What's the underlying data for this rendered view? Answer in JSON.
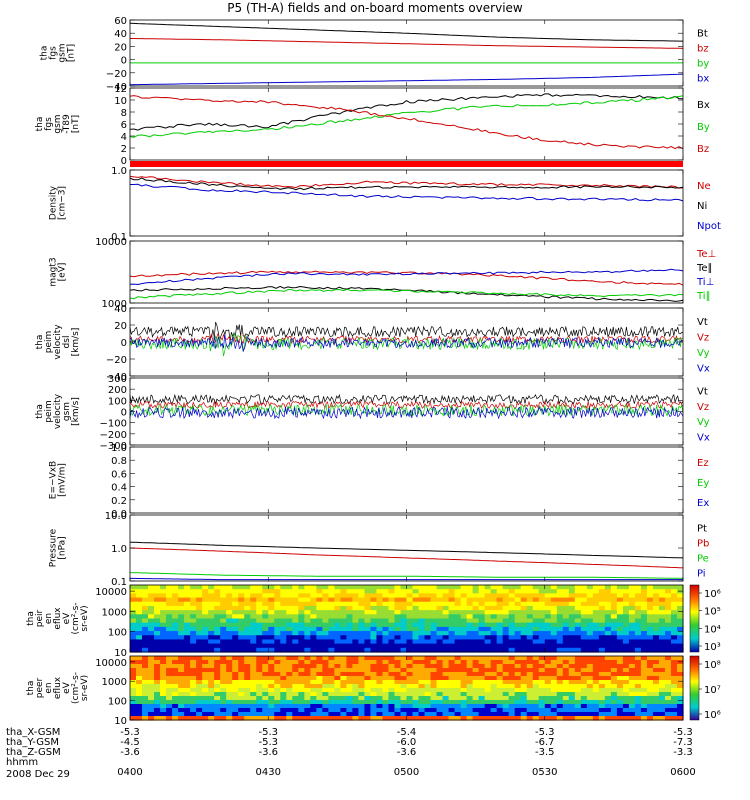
{
  "chart_data": {
    "type": "line",
    "title": "P5 (TH-A) fields and on-board moments overview",
    "date": "2008 Dec 29",
    "x": {
      "tick_labels": [
        "0400",
        "0430",
        "0500",
        "0530",
        "0600"
      ],
      "ephemeris": [
        {
          "label": "tha_X-GSM",
          "values": [
            "-5.3",
            "-5.3",
            "-5.4",
            "-5.3",
            "-5.3"
          ]
        },
        {
          "label": "tha_Y-GSM",
          "values": [
            "-4.5",
            "-5.3",
            "-6.0",
            "-6.7",
            "-7.3"
          ]
        },
        {
          "label": "tha_Z-GSM",
          "values": [
            "-3.6",
            "-3.6",
            "-3.6",
            "-3.5",
            "-3.3"
          ]
        },
        {
          "label": "hhmm",
          "values": []
        }
      ]
    },
    "panels": [
      {
        "ylabel": [
          "tha",
          "fgs",
          "gsm",
          "[nT]"
        ],
        "yticks": [
          "60",
          "40",
          "20",
          "0",
          "−20",
          "−40"
        ],
        "ylim": [
          -40,
          60
        ],
        "ymid": [
          -40,
          -20,
          0,
          20,
          40,
          60
        ],
        "legend": [
          {
            "label": "Bt",
            "color": "#000000"
          },
          {
            "label": "bz",
            "color": "#cc0000"
          },
          {
            "label": "by",
            "color": "#00cc00"
          },
          {
            "label": "bx",
            "color": "#0000cc"
          }
        ],
        "series": [
          {
            "color": "#000000",
            "values": [
              55,
              50,
              45,
              40,
              34,
              30,
              28
            ]
          },
          {
            "color": "#cc0000",
            "values": [
              32,
              30,
              27,
              24,
              21,
              19,
              17
            ]
          },
          {
            "color": "#00cc00",
            "values": [
              -5,
              -5,
              -5,
              -5,
              -5,
              -5,
              -5
            ]
          },
          {
            "color": "#0000cc",
            "values": [
              -38,
              -36,
              -34,
              -32,
              -30,
              -27,
              -22
            ]
          }
        ]
      },
      {
        "ylabel": [
          "tha",
          "fgs",
          "gsm",
          "-T89",
          "[nT]"
        ],
        "yticks": [
          "12",
          "10",
          "8",
          "6",
          "4",
          "2",
          "0"
        ],
        "ylim": [
          -1,
          12
        ],
        "legend": [
          {
            "label": "Bx",
            "color": "#000000"
          },
          {
            "label": "By",
            "color": "#00cc00"
          },
          {
            "label": "Bz",
            "color": "#cc0000"
          }
        ],
        "series": [
          {
            "color": "#000000",
            "values": [
              4.5,
              5.5,
              5.0,
              7.5,
              9.5,
              10.2,
              10.8,
              10.5,
              10.2
            ]
          },
          {
            "color": "#00cc00",
            "values": [
              3.2,
              4.0,
              4.5,
              6.0,
              7.5,
              8.5,
              9.0,
              9.5,
              10.5
            ]
          },
          {
            "color": "#cc0000",
            "values": [
              10.5,
              9.8,
              9.5,
              8.2,
              6.5,
              4.5,
              2.5,
              1.5,
              1.2
            ]
          }
        ]
      },
      {
        "ylabel": [
          "Density",
          "[cm−3]"
        ],
        "yticks": [
          "1.0",
          "0.1"
        ],
        "ylim": [
          0.1,
          1.0
        ],
        "log": true,
        "legend": [
          {
            "label": "Ne",
            "color": "#cc0000"
          },
          {
            "label": "Ni",
            "color": "#000000"
          },
          {
            "label": "Npot",
            "color": "#0000cc"
          }
        ],
        "series": [
          {
            "color": "#cc0000",
            "values": [
              0.8,
              0.65,
              0.55,
              0.65,
              0.62,
              0.6,
              0.58,
              0.55
            ]
          },
          {
            "color": "#000000",
            "values": [
              0.75,
              0.6,
              0.52,
              0.55,
              0.55,
              0.55,
              0.56,
              0.54
            ]
          },
          {
            "color": "#0000cc",
            "values": [
              0.6,
              0.5,
              0.45,
              0.4,
              0.38,
              0.37,
              0.36,
              0.35
            ]
          }
        ]
      },
      {
        "ylabel": [
          "magt3",
          "[eV]"
        ],
        "yticks": [
          "10000",
          "1000"
        ],
        "ylim": [
          1000,
          10000
        ],
        "log": true,
        "legend": [
          {
            "label": "Te⊥",
            "color": "#cc0000"
          },
          {
            "label": "Te∥",
            "color": "#000000"
          },
          {
            "label": "Ti⊥",
            "color": "#0000cc"
          },
          {
            "label": "Ti∥",
            "color": "#00cc00"
          }
        ],
        "series": [
          {
            "color": "#cc0000",
            "values": [
              2700,
              3000,
              3200,
              3100,
              3000,
              2600,
              2200,
              2000
            ]
          },
          {
            "color": "#000000",
            "values": [
              1600,
              1700,
              1800,
              1700,
              1500,
              1300,
              1150,
              1100
            ]
          },
          {
            "color": "#0000cc",
            "values": [
              2000,
              2500,
              3000,
              2900,
              3000,
              3100,
              3200,
              3400
            ]
          },
          {
            "color": "#00cc00",
            "values": [
              1200,
              1400,
              1600,
              1600,
              1500,
              1400,
              1300,
              1350
            ]
          }
        ]
      },
      {
        "ylabel": [
          "tha",
          "peim",
          "velocity",
          "dsl",
          "[km/s]"
        ],
        "yticks": [
          "40",
          "20",
          "0",
          "−20",
          "−40"
        ],
        "ylim": [
          -40,
          40
        ],
        "legend": [
          {
            "label": "Vt",
            "color": "#000000"
          },
          {
            "label": "Vz",
            "color": "#cc0000"
          },
          {
            "label": "Vy",
            "color": "#00cc00"
          },
          {
            "label": "Vx",
            "color": "#0000cc"
          }
        ],
        "series": [
          {
            "color": "#000000",
            "center": 12,
            "amp": 6
          },
          {
            "color": "#cc0000",
            "center": 3,
            "amp": 4
          },
          {
            "color": "#00cc00",
            "center": -2,
            "amp": 7
          },
          {
            "color": "#0000cc",
            "center": -1,
            "amp": 6
          }
        ]
      },
      {
        "ylabel": [
          "tha",
          "peim",
          "velocity",
          "gsm",
          "[km/s]"
        ],
        "yticks": [
          "300",
          "200",
          "100",
          "0",
          "−100",
          "−200",
          "−300"
        ],
        "ylim": [
          -300,
          300
        ],
        "legend": [
          {
            "label": "Vt",
            "color": "#000000"
          },
          {
            "label": "Vz",
            "color": "#cc0000"
          },
          {
            "label": "Vy",
            "color": "#00cc00"
          },
          {
            "label": "Vx",
            "color": "#0000cc"
          }
        ],
        "series": [
          {
            "color": "#000000",
            "center": 110,
            "amp": 40
          },
          {
            "color": "#cc0000",
            "center": 60,
            "amp": 30
          },
          {
            "color": "#00cc00",
            "center": 10,
            "amp": 50
          },
          {
            "color": "#0000cc",
            "center": -10,
            "amp": 50
          }
        ]
      },
      {
        "ylabel": [
          "E=−VxB",
          "[mV/m]"
        ],
        "yticks": [
          "1.0",
          "0.8",
          "0.6",
          "0.4",
          "0.2",
          "0.0"
        ],
        "ylim": [
          0,
          1
        ],
        "legend": [
          {
            "label": "Ez",
            "color": "#cc0000"
          },
          {
            "label": "Ey",
            "color": "#00cc00"
          },
          {
            "label": "Ex",
            "color": "#0000cc"
          }
        ],
        "series": []
      },
      {
        "ylabel": [
          "Pressure",
          "[nPa]"
        ],
        "yticks": [
          "10.0",
          "1.0",
          "0.1"
        ],
        "ylim": [
          0.1,
          10
        ],
        "log": true,
        "legend": [
          {
            "label": "Pt",
            "color": "#000000"
          },
          {
            "label": "Pb",
            "color": "#cc0000"
          },
          {
            "label": "Pe",
            "color": "#00cc00"
          },
          {
            "label": "Pi",
            "color": "#0000cc"
          }
        ],
        "series": [
          {
            "color": "#000000",
            "values": [
              1.5,
              1.2,
              1.0,
              0.85,
              0.72,
              0.6,
              0.5
            ]
          },
          {
            "color": "#cc0000",
            "values": [
              1.0,
              0.8,
              0.62,
              0.5,
              0.4,
              0.32,
              0.25
            ]
          },
          {
            "color": "#00cc00",
            "values": [
              0.18,
              0.15,
              0.14,
              0.14,
              0.13,
              0.13,
              0.12
            ]
          },
          {
            "color": "#0000cc",
            "values": [
              0.12,
              0.11,
              0.11,
              0.11,
              0.11,
              0.11,
              0.11
            ]
          }
        ]
      },
      {
        "type": "heatmap",
        "ylabel": [
          "tha",
          "peir",
          "en",
          "eflux",
          "eV",
          "(cm²-s-",
          "sr-eV)"
        ],
        "yticks": [
          "10000",
          "1000",
          "100",
          "10"
        ],
        "ylim": [
          10,
          20000
        ],
        "log": true,
        "colorbar": [
          "10⁶",
          "10⁵",
          "10⁴",
          "10³"
        ]
      },
      {
        "type": "heatmap",
        "ylabel": [
          "tha",
          "peer",
          "en",
          "eflux",
          "eV",
          "(cm²-s-",
          "sr-eV)"
        ],
        "yticks": [
          "10000",
          "1000",
          "100",
          "10"
        ],
        "ylim": [
          10,
          20000
        ],
        "log": true,
        "colorbar": [
          "10⁸",
          "10⁷",
          "10⁶"
        ]
      }
    ]
  }
}
